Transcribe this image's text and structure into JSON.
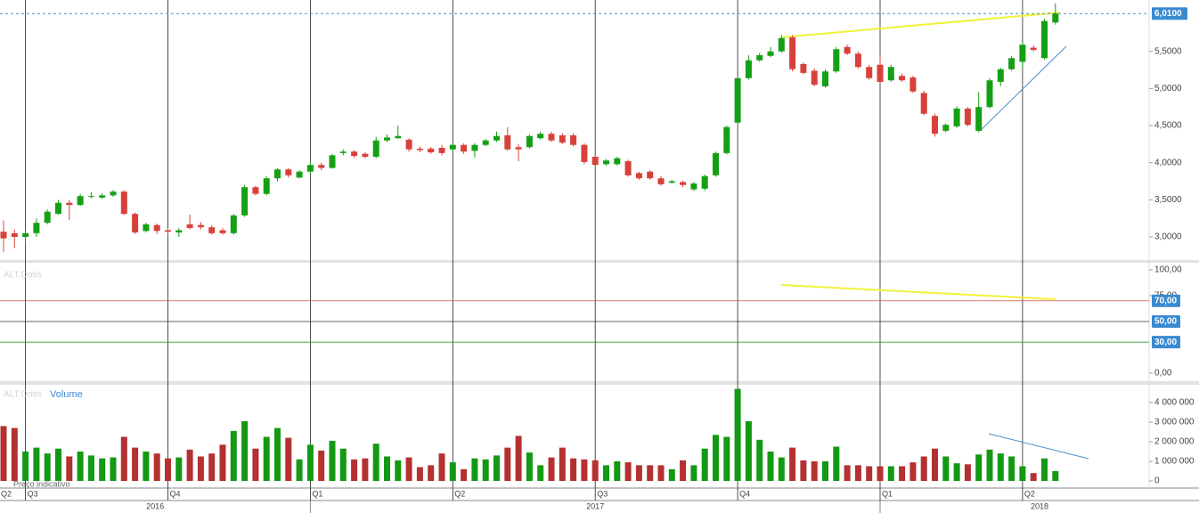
{
  "chart_data": {
    "type": "candlestick",
    "open": [
      3.07,
      3.05,
      3.0,
      3.05,
      3.19,
      3.31,
      3.46,
      3.43,
      3.54,
      3.53,
      3.56,
      3.61,
      3.31,
      3.08,
      3.16,
      3.09,
      3.06,
      3.17,
      3.16,
      3.13,
      3.09,
      3.05,
      3.29,
      3.67,
      3.58,
      3.79,
      3.91,
      3.8,
      3.88,
      3.97,
      3.93,
      4.13,
      4.15,
      4.12,
      4.08,
      4.3,
      4.33,
      4.31,
      4.19,
      4.19,
      4.2,
      4.18,
      4.24,
      4.16,
      4.24,
      4.3,
      4.37,
      4.21,
      4.21,
      4.33,
      4.39,
      4.37,
      4.37,
      4.24,
      4.08,
      3.98,
      3.98,
      4.02,
      3.86,
      3.88,
      3.79,
      3.73,
      3.74,
      3.64,
      3.65,
      3.83,
      4.13,
      4.54,
      5.14,
      5.38,
      5.44,
      5.5,
      5.69,
      5.33,
      5.24,
      5.03,
      5.23,
      5.56,
      5.47,
      5.29,
      5.32,
      5.11,
      5.17,
      5.15,
      4.94,
      4.63,
      4.43,
      4.49,
      4.73,
      4.43,
      4.75,
      5.09,
      5.26,
      5.36,
      5.55,
      5.41,
      5.89
    ],
    "high": [
      3.22,
      3.1,
      3.1,
      3.25,
      3.37,
      3.5,
      3.5,
      3.58,
      3.6,
      3.59,
      3.63,
      3.63,
      3.33,
      3.19,
      3.18,
      3.12,
      3.12,
      3.3,
      3.2,
      3.16,
      3.12,
      3.31,
      3.7,
      3.69,
      3.82,
      3.93,
      3.93,
      3.9,
      4.02,
      4.0,
      4.12,
      4.18,
      4.17,
      4.14,
      4.35,
      4.38,
      4.5,
      4.33,
      4.22,
      4.21,
      4.24,
      4.26,
      4.26,
      4.26,
      4.32,
      4.42,
      4.48,
      4.25,
      4.38,
      4.42,
      4.42,
      4.4,
      4.4,
      4.26,
      4.12,
      4.05,
      4.08,
      4.04,
      3.88,
      3.9,
      3.82,
      3.77,
      3.76,
      3.74,
      3.84,
      4.15,
      4.5,
      5.16,
      5.45,
      5.48,
      5.56,
      5.72,
      5.72,
      5.35,
      5.27,
      5.26,
      5.56,
      5.59,
      5.5,
      5.32,
      5.44,
      5.32,
      5.2,
      5.17,
      4.97,
      4.66,
      4.53,
      4.76,
      4.75,
      4.95,
      5.14,
      5.28,
      5.44,
      5.62,
      5.58,
      5.94,
      6.15
    ],
    "low": [
      2.8,
      2.85,
      2.88,
      3.0,
      3.17,
      3.3,
      3.23,
      3.42,
      3.52,
      3.51,
      3.54,
      3.3,
      3.04,
      3.06,
      3.04,
      3.03,
      3.0,
      3.1,
      3.1,
      3.03,
      3.03,
      3.03,
      3.27,
      3.56,
      3.56,
      3.75,
      3.8,
      3.79,
      3.85,
      3.9,
      3.92,
      4.1,
      4.07,
      4.06,
      4.06,
      4.28,
      4.32,
      4.15,
      4.14,
      4.12,
      4.1,
      4.15,
      4.12,
      4.07,
      4.22,
      4.28,
      4.16,
      4.02,
      4.19,
      4.31,
      4.28,
      4.25,
      4.22,
      3.98,
      3.95,
      3.96,
      3.96,
      3.81,
      3.77,
      3.77,
      3.69,
      3.72,
      3.67,
      3.62,
      3.62,
      3.81,
      4.11,
      4.52,
      5.12,
      5.36,
      5.42,
      5.48,
      5.23,
      5.19,
      5.03,
      5.01,
      5.21,
      5.45,
      5.27,
      5.12,
      5.07,
      5.09,
      5.09,
      4.94,
      4.64,
      4.35,
      4.41,
      4.47,
      4.49,
      4.41,
      4.73,
      5.03,
      5.24,
      5.28,
      5.5,
      5.39,
      5.86
    ],
    "close": [
      2.98,
      3.0,
      3.05,
      3.19,
      3.34,
      3.46,
      3.43,
      3.55,
      3.55,
      3.56,
      3.61,
      3.31,
      3.06,
      3.17,
      3.08,
      3.07,
      3.09,
      3.12,
      3.13,
      3.05,
      3.05,
      3.29,
      3.67,
      3.58,
      3.79,
      3.91,
      3.83,
      3.88,
      3.97,
      3.93,
      4.1,
      4.15,
      4.09,
      4.08,
      4.3,
      4.34,
      4.36,
      4.18,
      4.17,
      4.14,
      4.13,
      4.24,
      4.15,
      4.24,
      4.3,
      4.36,
      4.18,
      4.18,
      4.36,
      4.39,
      4.3,
      4.27,
      4.24,
      4.01,
      3.97,
      4.03,
      4.06,
      3.83,
      3.79,
      3.79,
      3.71,
      3.75,
      3.7,
      3.72,
      3.82,
      4.13,
      4.48,
      5.14,
      5.38,
      5.45,
      5.5,
      5.68,
      5.26,
      5.21,
      5.05,
      5.23,
      5.53,
      5.47,
      5.29,
      5.14,
      5.09,
      5.29,
      5.11,
      4.96,
      4.66,
      4.39,
      4.51,
      4.73,
      4.51,
      4.75,
      5.11,
      5.26,
      5.41,
      5.59,
      5.52,
      5.91,
      6.01
    ],
    "volume": [
      2800000,
      2700000,
      1500000,
      1700000,
      1400000,
      1650000,
      1250000,
      1500000,
      1300000,
      1150000,
      1200000,
      2250000,
      1700000,
      1500000,
      1400000,
      1150000,
      1200000,
      1600000,
      1250000,
      1400000,
      1850000,
      2550000,
      3050000,
      1650000,
      2250000,
      2700000,
      2200000,
      1100000,
      1850000,
      1550000,
      2050000,
      1650000,
      1100000,
      1150000,
      1900000,
      1250000,
      1050000,
      1200000,
      700000,
      800000,
      1400000,
      950000,
      600000,
      1150000,
      1100000,
      1300000,
      1700000,
      2300000,
      1450000,
      800000,
      1200000,
      1700000,
      1150000,
      1100000,
      1050000,
      800000,
      1000000,
      950000,
      800000,
      800000,
      800000,
      600000,
      1050000,
      800000,
      1650000,
      2350000,
      2250000,
      4700000,
      3050000,
      2100000,
      1500000,
      1200000,
      1700000,
      1050000,
      1000000,
      1000000,
      1750000,
      800000,
      800000,
      750000,
      750000,
      750000,
      750000,
      950000,
      1250000,
      1650000,
      1250000,
      900000,
      850000,
      1350000,
      1600000,
      1400000,
      1250000,
      750000,
      400000,
      1150000,
      500000
    ],
    "up_color": "#14a014",
    "down_color": "#d8413a",
    "volume_up_color": "#139913",
    "volume_down_color": "#b53030",
    "ylim": [
      2.688,
      6.193
    ],
    "yticks": [
      {
        "value": 3,
        "label": "3,0000"
      },
      {
        "value": 3.5,
        "label": "3,5000"
      },
      {
        "value": 4,
        "label": "4,0000"
      },
      {
        "value": 4.5,
        "label": "4,5000"
      },
      {
        "value": 5,
        "label": "5,0000"
      },
      {
        "value": 5.5,
        "label": "5,5000"
      }
    ],
    "last_price": {
      "value": 6.01,
      "label": "6,0100"
    },
    "xticks": [
      {
        "value": -11,
        "label": "Q2"
      },
      {
        "value": 2,
        "label": "Q3"
      },
      {
        "value": 15,
        "label": "Q4"
      },
      {
        "value": 28,
        "label": "Q1"
      },
      {
        "value": 41,
        "label": "Q2"
      },
      {
        "value": 54,
        "label": "Q3"
      },
      {
        "value": 67,
        "label": "Q4"
      },
      {
        "value": 80,
        "label": "Q1"
      },
      {
        "value": 93,
        "label": "Q2"
      }
    ],
    "years": [
      "2016",
      "2017",
      "2018"
    ],
    "year_starts": [
      28,
      80
    ],
    "oscillator": {
      "label": "ALT.Ootis",
      "ylim": [
        -7.8,
        106.9
      ],
      "yticks": [
        {
          "value": 0,
          "label": "0,00"
        },
        {
          "value": 75,
          "label": "75,00"
        },
        {
          "value": 100,
          "label": "100,00"
        }
      ],
      "levels": [
        {
          "value": 70,
          "label": "70,00",
          "color": "#d05050"
        },
        {
          "value": 50,
          "label": "50,00",
          "color": "#333333"
        },
        {
          "value": 30,
          "label": "30,00",
          "color": "#30a030"
        }
      ]
    },
    "volume_panel": {
      "label": "ALT.Ootis",
      "title": "Volume",
      "ylim": [
        -364000,
        4909000
      ],
      "yticks": [
        0,
        {
          "value": 1000000,
          "label": "1 000 000"
        },
        {
          "value": 2000000,
          "label": "2 000 000"
        },
        {
          "value": 3000000,
          "label": "3 000 000"
        },
        {
          "value": 4000000,
          "label": "4 000 000"
        }
      ]
    },
    "note": "Preço indicativo"
  }
}
